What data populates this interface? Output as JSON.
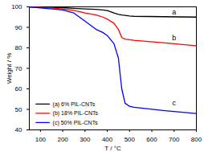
{
  "chart_data": {
    "type": "line",
    "xlabel": "T / °C",
    "ylabel": "Weight / %",
    "x": [
      50,
      150,
      200,
      250,
      300,
      350,
      380,
      400,
      430,
      450,
      465,
      480,
      500,
      520,
      650,
      800
    ],
    "series": [
      {
        "name": "(a) 6% PIL-CNTs",
        "color": "#000000",
        "values": [
          100,
          99.8,
          99.6,
          99.3,
          99,
          98.8,
          98.5,
          98.2,
          97,
          96.3,
          96,
          95.8,
          95.5,
          95.4,
          95.2,
          95
        ]
      },
      {
        "name": "(b) 18% PIL-CNTs",
        "color": "#ff0000",
        "values": [
          100,
          99.5,
          99,
          98.3,
          97,
          96,
          95,
          94,
          92,
          89,
          85,
          84.3,
          84,
          83.7,
          82.5,
          81
        ]
      },
      {
        "name": "(c) 50% PIL-CNTs",
        "color": "#0000ff",
        "values": [
          100,
          99,
          98.5,
          97,
          93,
          89,
          87.5,
          86,
          82,
          75,
          60,
          53,
          51.5,
          51,
          49.5,
          48
        ]
      }
    ],
    "annotations": [
      {
        "text": "a",
        "x": 700,
        "y": 97.5
      },
      {
        "text": "b",
        "x": 700,
        "y": 85
      },
      {
        "text": "c",
        "x": 700,
        "y": 53
      }
    ],
    "xlim": [
      50,
      800
    ],
    "xticks": [
      100,
      200,
      300,
      400,
      500,
      600,
      700,
      800
    ],
    "ylim": [
      40,
      100
    ],
    "yticks": [
      40,
      50,
      60,
      70,
      80,
      90,
      100
    ],
    "legend": "lower left"
  }
}
